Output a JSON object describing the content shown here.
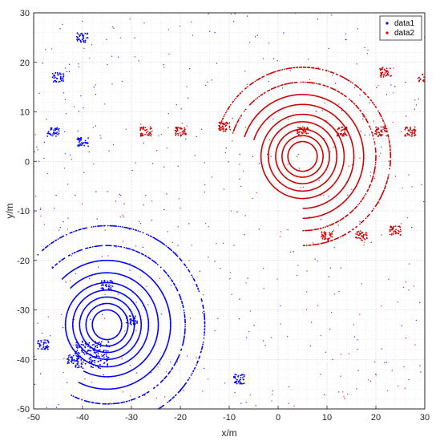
{
  "chart_data": {
    "type": "scatter",
    "xlabel": "x/m",
    "ylabel": "y/m",
    "xlim": [
      -50,
      30
    ],
    "ylim": [
      -50,
      30
    ],
    "xticks": [
      -50,
      -40,
      -30,
      -20,
      -10,
      0,
      10,
      20,
      30
    ],
    "yticks": [
      -50,
      -40,
      -30,
      -20,
      -10,
      0,
      10,
      20,
      30
    ],
    "grid": "on (major and minor, dotted)",
    "legend_position": "top-right",
    "series": [
      {
        "name": "data1",
        "color": "#0000ff",
        "sensor_origin": [
          -35,
          -33
        ],
        "ring_radii": [
          3,
          4.3,
          5.6,
          7,
          8.5,
          10.5,
          13,
          16,
          20
        ],
        "clusters": [
          {
            "x": -38,
            "y": -39,
            "note": "dense cluster"
          },
          {
            "x": -42,
            "y": -40
          },
          {
            "x": -48,
            "y": -37
          },
          {
            "x": -35,
            "y": -25
          },
          {
            "x": -30,
            "y": -32
          },
          {
            "x": -46,
            "y": 6
          },
          {
            "x": -40,
            "y": 4
          },
          {
            "x": -8,
            "y": -44
          },
          {
            "x": -45,
            "y": 17
          },
          {
            "x": -40,
            "y": 25
          }
        ]
      },
      {
        "name": "data2",
        "color": "#cc0000",
        "sensor_origin": [
          5,
          1
        ],
        "ring_radii": [
          3,
          4.2,
          5.5,
          7,
          8.5,
          10.5,
          12.5,
          15,
          18
        ],
        "clusters": [
          {
            "x": -27,
            "y": 6
          },
          {
            "x": -20,
            "y": 6
          },
          {
            "x": -11,
            "y": 7
          },
          {
            "x": 5,
            "y": 6
          },
          {
            "x": 13,
            "y": 6
          },
          {
            "x": 21,
            "y": 6
          },
          {
            "x": 27,
            "y": 6
          },
          {
            "x": 17,
            "y": -15
          },
          {
            "x": 24,
            "y": -14
          },
          {
            "x": 10,
            "y": -15
          },
          {
            "x": 22,
            "y": 18
          },
          {
            "x": 30,
            "y": 17
          }
        ]
      }
    ]
  },
  "legend": {
    "items": [
      {
        "label": "data1",
        "color": "#0000ff"
      },
      {
        "label": "data2",
        "color": "#cc0000"
      }
    ]
  }
}
